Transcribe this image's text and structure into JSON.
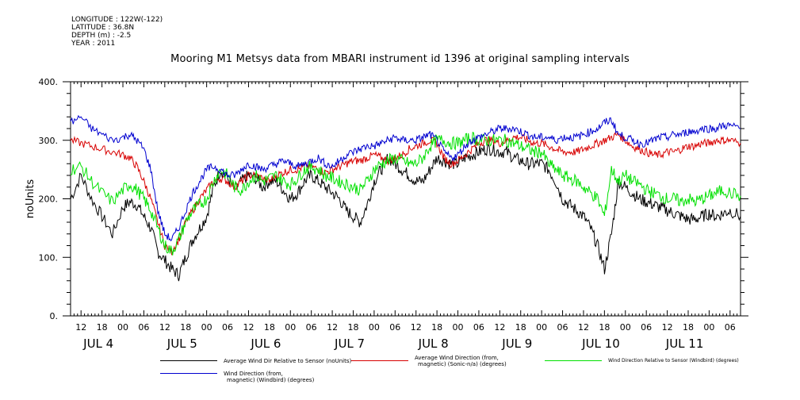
{
  "header": {
    "longitude": "LONGITUDE : 122W(-122)",
    "latitude": "LATITUDE : 36.8N",
    "depth": "DEPTH (m) : -2.5",
    "year": "YEAR : 2011"
  },
  "chart_data": {
    "type": "line",
    "title": "Mooring M1 Metsys data from MBARI instrument id 1396 at original sampling intervals",
    "ylabel": "noUnits",
    "ylim": [
      0,
      400
    ],
    "yticks": [
      0,
      100,
      200,
      300,
      400
    ],
    "ytick_labels": [
      "0.",
      "100.",
      "200.",
      "300.",
      "400."
    ],
    "x_hour_ticks": [
      {
        "h": 12,
        "label": "12"
      },
      {
        "h": 18,
        "label": "18"
      },
      {
        "h": 24,
        "label": "00"
      },
      {
        "h": 30,
        "label": "06"
      },
      {
        "h": 36,
        "label": "12"
      },
      {
        "h": 42,
        "label": "18"
      },
      {
        "h": 48,
        "label": "00"
      },
      {
        "h": 54,
        "label": "06"
      },
      {
        "h": 60,
        "label": "12"
      },
      {
        "h": 66,
        "label": "18"
      },
      {
        "h": 72,
        "label": "00"
      },
      {
        "h": 78,
        "label": "06"
      },
      {
        "h": 84,
        "label": "12"
      },
      {
        "h": 90,
        "label": "18"
      },
      {
        "h": 96,
        "label": "00"
      },
      {
        "h": 102,
        "label": "06"
      },
      {
        "h": 108,
        "label": "12"
      },
      {
        "h": 114,
        "label": "18"
      },
      {
        "h": 120,
        "label": "00"
      },
      {
        "h": 126,
        "label": "06"
      },
      {
        "h": 132,
        "label": "12"
      },
      {
        "h": 138,
        "label": "18"
      },
      {
        "h": 144,
        "label": "00"
      },
      {
        "h": 150,
        "label": "06"
      },
      {
        "h": 156,
        "label": "12"
      },
      {
        "h": 162,
        "label": "18"
      },
      {
        "h": 168,
        "label": "00"
      },
      {
        "h": 174,
        "label": "06"
      },
      {
        "h": 180,
        "label": "12"
      },
      {
        "h": 186,
        "label": "18"
      },
      {
        "h": 192,
        "label": "00"
      },
      {
        "h": 198,
        "label": "06"
      }
    ],
    "x_day_labels": [
      {
        "h": 12,
        "label": "JUL  4"
      },
      {
        "h": 36,
        "label": "JUL  5"
      },
      {
        "h": 60,
        "label": "JUL  6"
      },
      {
        "h": 84,
        "label": "JUL  7"
      },
      {
        "h": 108,
        "label": "JUL  8"
      },
      {
        "h": 132,
        "label": "JUL  9"
      },
      {
        "h": 156,
        "label": "JUL 10"
      },
      {
        "h": 180,
        "label": "JUL 11"
      }
    ],
    "xlim_hours": [
      9,
      201
    ],
    "hours_note": "hours since JUL 4 00:00",
    "series": [
      {
        "name": "Average Wind Dir Relative to Sensor (noUnits)",
        "color": "#000000",
        "x": [
          9,
          12,
          15,
          18,
          21,
          24,
          26,
          28,
          30,
          32,
          34,
          36,
          38,
          40,
          42,
          44,
          46,
          48,
          50,
          52,
          54,
          56,
          58,
          60,
          62,
          64,
          66,
          68,
          70,
          72,
          74,
          76,
          78,
          80,
          82,
          84,
          86,
          88,
          90,
          92,
          94,
          96,
          98,
          100,
          102,
          104,
          106,
          108,
          110,
          112,
          114,
          116,
          118,
          120,
          122,
          124,
          126,
          128,
          130,
          132,
          134,
          136,
          138,
          140,
          142,
          144,
          146,
          148,
          150,
          152,
          154,
          156,
          158,
          160,
          162,
          164,
          166,
          168,
          170,
          172,
          174,
          176,
          178,
          180,
          182,
          184,
          186,
          188,
          190,
          192,
          194,
          196,
          198,
          201
        ],
        "y": [
          200,
          240,
          200,
          170,
          140,
          185,
          195,
          190,
          170,
          150,
          110,
          95,
          80,
          70,
          100,
          130,
          150,
          170,
          220,
          250,
          235,
          215,
          230,
          240,
          235,
          220,
          230,
          230,
          215,
          200,
          210,
          230,
          240,
          230,
          220,
          210,
          200,
          180,
          170,
          160,
          190,
          230,
          250,
          270,
          260,
          250,
          240,
          230,
          230,
          250,
          270,
          265,
          260,
          260,
          270,
          275,
          280,
          285,
          285,
          280,
          280,
          270,
          265,
          260,
          260,
          260,
          250,
          230,
          200,
          190,
          180,
          170,
          150,
          120,
          80,
          140,
          230,
          220,
          210,
          200,
          195,
          190,
          185,
          180,
          175,
          170,
          165,
          165,
          170,
          175,
          170,
          175,
          180,
          170
        ],
        "spikes": []
      },
      {
        "name": "Average Wind Direction (from, magnetic) (Sonic-n/a) (degrees)",
        "color": "#d80000",
        "x": [
          9,
          12,
          15,
          18,
          21,
          24,
          26,
          28,
          30,
          32,
          34,
          36,
          38,
          40,
          42,
          44,
          46,
          48,
          50,
          52,
          54,
          56,
          58,
          60,
          62,
          64,
          66,
          68,
          70,
          72,
          74,
          76,
          78,
          80,
          82,
          84,
          86,
          88,
          90,
          92,
          94,
          96,
          98,
          100,
          102,
          104,
          106,
          108,
          110,
          112,
          114,
          116,
          118,
          120,
          122,
          124,
          126,
          128,
          130,
          132,
          134,
          136,
          138,
          140,
          142,
          144,
          146,
          148,
          150,
          152,
          154,
          156,
          158,
          160,
          162,
          164,
          166,
          168,
          170,
          172,
          174,
          176,
          178,
          180,
          182,
          184,
          186,
          188,
          190,
          192,
          194,
          196,
          198,
          201
        ],
        "y": [
          300,
          295,
          290,
          285,
          280,
          275,
          270,
          255,
          230,
          200,
          160,
          120,
          110,
          130,
          160,
          180,
          200,
          215,
          230,
          235,
          230,
          220,
          230,
          240,
          240,
          235,
          230,
          240,
          245,
          250,
          250,
          255,
          255,
          250,
          245,
          250,
          255,
          260,
          265,
          265,
          270,
          275,
          270,
          265,
          270,
          275,
          285,
          290,
          295,
          300,
          295,
          270,
          260,
          265,
          275,
          285,
          295,
          300,
          300,
          295,
          300,
          305,
          305,
          300,
          295,
          295,
          290,
          285,
          280,
          280,
          280,
          285,
          290,
          295,
          300,
          305,
          310,
          300,
          290,
          285,
          280,
          275,
          275,
          280,
          280,
          285,
          290,
          290,
          295,
          295,
          300,
          300,
          300,
          295
        ],
        "spikes": []
      },
      {
        "name": "Wind Direction Relative to Sensor (Windbird) (degrees)",
        "color": "#00e000",
        "x": [
          9,
          12,
          15,
          18,
          21,
          24,
          26,
          28,
          30,
          32,
          34,
          36,
          38,
          40,
          42,
          44,
          46,
          48,
          50,
          52,
          54,
          56,
          58,
          60,
          62,
          64,
          66,
          68,
          70,
          72,
          74,
          76,
          78,
          80,
          82,
          84,
          86,
          88,
          90,
          92,
          94,
          96,
          98,
          100,
          102,
          104,
          106,
          108,
          110,
          112,
          114,
          116,
          118,
          120,
          122,
          124,
          126,
          128,
          130,
          132,
          134,
          136,
          138,
          140,
          142,
          144,
          146,
          148,
          150,
          152,
          154,
          156,
          158,
          160,
          162,
          164,
          166,
          168,
          170,
          172,
          174,
          176,
          178,
          180,
          182,
          184,
          186,
          188,
          190,
          192,
          194,
          196,
          198,
          201
        ],
        "y": [
          250,
          255,
          230,
          210,
          195,
          215,
          225,
          215,
          200,
          180,
          150,
          120,
          110,
          130,
          160,
          180,
          190,
          200,
          230,
          250,
          240,
          220,
          215,
          230,
          240,
          230,
          235,
          240,
          230,
          225,
          235,
          250,
          255,
          250,
          240,
          235,
          230,
          225,
          220,
          215,
          230,
          250,
          260,
          265,
          270,
          265,
          260,
          260,
          270,
          290,
          300,
          300,
          295,
          295,
          300,
          305,
          300,
          300,
          300,
          300,
          300,
          295,
          290,
          285,
          280,
          280,
          260,
          250,
          240,
          235,
          230,
          220,
          210,
          200,
          170,
          250,
          230,
          240,
          230,
          225,
          215,
          210,
          205,
          200,
          200,
          195,
          200,
          195,
          200,
          205,
          210,
          215,
          210,
          205
        ],
        "spikes": []
      },
      {
        "name": "Wind Direction (from, magnetic) (Windbird) (degrees)",
        "color": "#0000d0",
        "x": [
          9,
          12,
          15,
          18,
          21,
          24,
          26,
          28,
          30,
          32,
          34,
          36,
          38,
          40,
          42,
          44,
          46,
          48,
          50,
          52,
          54,
          56,
          58,
          60,
          62,
          64,
          66,
          68,
          70,
          72,
          74,
          76,
          78,
          80,
          82,
          84,
          86,
          88,
          90,
          92,
          94,
          96,
          98,
          100,
          102,
          104,
          106,
          108,
          110,
          112,
          114,
          116,
          118,
          120,
          122,
          124,
          126,
          128,
          130,
          132,
          134,
          136,
          138,
          140,
          142,
          144,
          146,
          148,
          150,
          152,
          154,
          156,
          158,
          160,
          162,
          164,
          166,
          168,
          170,
          172,
          174,
          176,
          178,
          180,
          182,
          184,
          186,
          188,
          190,
          192,
          194,
          196,
          198,
          201
        ],
        "y": [
          330,
          340,
          320,
          310,
          300,
          305,
          310,
          300,
          285,
          250,
          180,
          140,
          130,
          150,
          180,
          210,
          230,
          250,
          255,
          250,
          240,
          240,
          250,
          260,
          255,
          250,
          255,
          260,
          265,
          260,
          255,
          260,
          265,
          270,
          260,
          255,
          265,
          275,
          280,
          285,
          290,
          290,
          295,
          300,
          305,
          300,
          300,
          300,
          305,
          310,
          300,
          280,
          270,
          275,
          290,
          300,
          305,
          310,
          315,
          320,
          320,
          320,
          315,
          310,
          305,
          305,
          305,
          300,
          305,
          305,
          305,
          310,
          315,
          320,
          330,
          335,
          310,
          305,
          300,
          295,
          295,
          300,
          305,
          305,
          310,
          310,
          315,
          315,
          320,
          320,
          320,
          325,
          325,
          320
        ],
        "spikes": []
      }
    ]
  },
  "legend": [
    {
      "line1": "Average Wind Dir Relative to Sensor (noUnits)",
      "line2": "",
      "color": "#000000"
    },
    {
      "line1": "Average Wind Direction (from,",
      "line2": "magnetic) (Sonic-n/a) (degrees)",
      "color": "#d80000"
    },
    {
      "line1": "Wind Direction Relative to Sensor (Windbird) (degrees)",
      "line2": "",
      "color": "#00e000"
    },
    {
      "line1": "Wind Direction (from,",
      "line2": "magnetic) (Windbird) (degrees)",
      "color": "#0000d0"
    }
  ]
}
